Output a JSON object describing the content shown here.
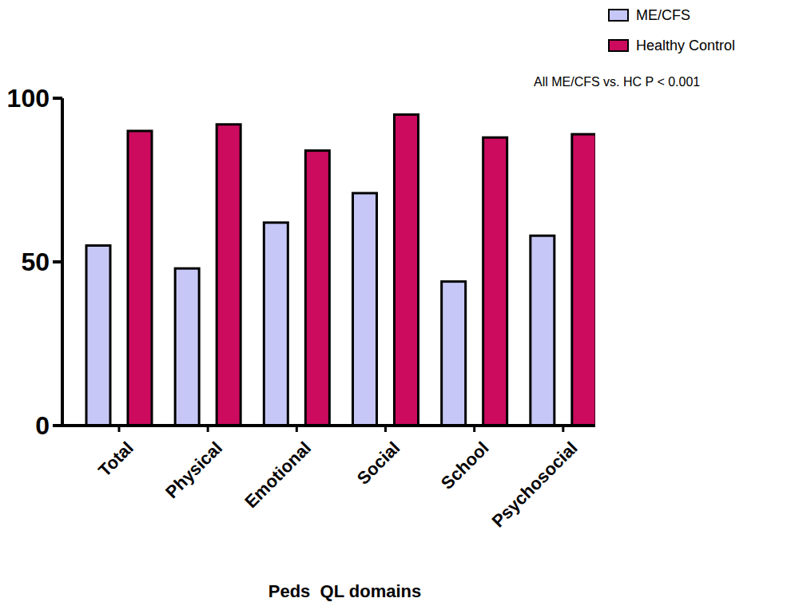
{
  "chart_data": {
    "type": "bar",
    "categories": [
      "Total",
      "Physical",
      "Emotional",
      "Social",
      "School",
      "Psychosocial"
    ],
    "series": [
      {
        "name": "ME/CFS",
        "color": "#c7c7f7",
        "values": [
          55,
          48,
          62,
          71,
          44,
          58
        ]
      },
      {
        "name": "Healthy Control",
        "color": "#cc0b5f",
        "values": [
          90,
          92,
          84,
          95,
          88,
          89
        ]
      }
    ],
    "xlabel": "Peds  QL domains",
    "annotation": "All ME/CFS vs. HC P < 0.001",
    "ylim": [
      0,
      100
    ],
    "yticks": [
      0,
      50,
      100
    ],
    "legend": "upper right",
    "grid": false
  }
}
